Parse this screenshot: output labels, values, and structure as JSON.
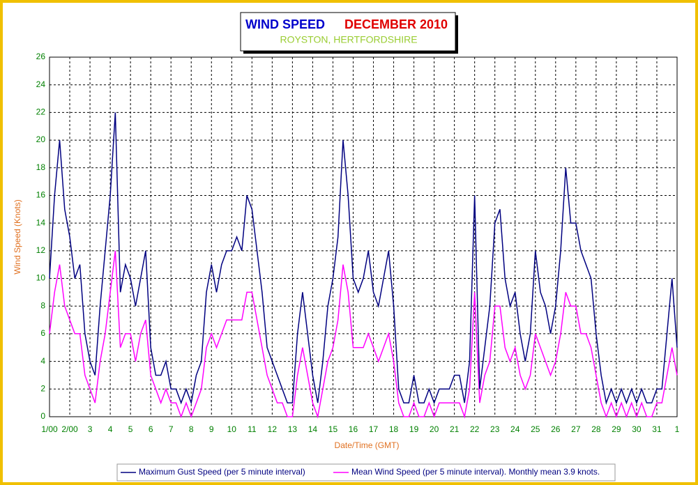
{
  "chart_data": {
    "type": "line",
    "title": "WIND SPEED",
    "title_date": "DECEMBER 2010",
    "subtitle": "ROYSTON, HERTFORDSHIRE",
    "xlabel": "Date/Time (GMT)",
    "ylabel": "Wind Speed (Knots)",
    "x": [
      0,
      0.25,
      0.5,
      0.75,
      1,
      1.25,
      1.5,
      1.75,
      2,
      2.25,
      2.5,
      2.75,
      3,
      3.25,
      3.5,
      3.75,
      4,
      4.25,
      4.5,
      4.75,
      5,
      5.25,
      5.5,
      5.75,
      6,
      6.25,
      6.5,
      6.75,
      7,
      7.25,
      7.5,
      7.75,
      8,
      8.25,
      8.5,
      8.75,
      9,
      9.25,
      9.5,
      9.75,
      10,
      10.25,
      10.5,
      10.75,
      11,
      11.25,
      11.5,
      11.75,
      12,
      12.25,
      12.5,
      12.75,
      13,
      13.25,
      13.5,
      13.75,
      14,
      14.25,
      14.5,
      14.75,
      15,
      15.25,
      15.5,
      15.75,
      16,
      16.25,
      16.5,
      16.75,
      17,
      17.25,
      17.5,
      17.75,
      18,
      18.25,
      18.5,
      18.75,
      19,
      19.25,
      19.5,
      19.75,
      20,
      20.25,
      20.5,
      20.75,
      21,
      21.25,
      21.5,
      21.75,
      22,
      22.25,
      22.5,
      22.75,
      23,
      23.25,
      23.5,
      23.75,
      24,
      24.25,
      24.5,
      24.75,
      25,
      25.25,
      25.5,
      25.75,
      26,
      26.25,
      26.5,
      26.75,
      27,
      27.25,
      27.5,
      27.75,
      28,
      28.25,
      28.5,
      28.75,
      29,
      29.25,
      29.5,
      29.75,
      30,
      30.25,
      30.5,
      30.75,
      31
    ],
    "series": [
      {
        "name": "Maximum Gust Speed (per 5 minute interval)",
        "color": "#000080",
        "values": [
          10,
          16,
          20,
          15,
          13,
          10,
          11,
          6,
          4,
          3,
          8,
          12,
          16,
          22,
          9,
          11,
          10,
          8,
          10,
          12,
          5,
          3,
          3,
          4,
          2,
          2,
          1,
          2,
          1,
          3,
          4,
          9,
          11,
          9,
          11,
          12,
          12,
          13,
          12,
          16,
          15,
          12,
          9,
          5,
          4,
          3,
          2,
          1,
          1,
          6,
          9,
          6,
          3,
          1,
          4,
          8,
          10,
          13,
          20,
          16,
          10,
          9,
          10,
          12,
          9,
          8,
          10,
          12,
          8,
          2,
          1,
          1,
          3,
          1,
          1,
          2,
          1,
          2,
          2,
          2,
          3,
          3,
          1,
          4,
          16,
          2,
          5,
          8,
          14,
          15,
          10,
          8,
          9,
          6,
          4,
          6,
          12,
          9,
          8,
          6,
          8,
          12,
          18,
          14,
          14,
          12,
          11,
          10,
          6,
          3,
          1,
          2,
          1,
          2,
          1,
          2,
          1,
          2,
          1,
          1,
          2,
          2,
          6,
          10,
          5
        ]
      },
      {
        "name": "Mean Wind Speed (per 5 minute interval). Monthly mean 3.9 knots.",
        "color": "#ff00ff",
        "values": [
          6,
          9,
          11,
          8,
          7,
          6,
          6,
          3,
          2,
          1,
          4,
          6,
          9,
          12,
          5,
          6,
          6,
          4,
          6,
          7,
          3,
          2,
          1,
          2,
          1,
          1,
          0,
          1,
          0,
          1,
          2,
          5,
          6,
          5,
          6,
          7,
          7,
          7,
          7,
          9,
          9,
          7,
          5,
          3,
          2,
          1,
          1,
          0,
          0,
          3,
          5,
          3,
          1,
          0,
          2,
          4,
          5,
          7,
          11,
          9,
          5,
          5,
          5,
          6,
          5,
          4,
          5,
          6,
          4,
          1,
          0,
          0,
          1,
          0,
          0,
          1,
          0,
          1,
          1,
          1,
          1,
          1,
          0,
          2,
          9,
          1,
          3,
          4,
          8,
          8,
          5,
          4,
          5,
          3,
          2,
          3,
          6,
          5,
          4,
          3,
          4,
          6,
          9,
          8,
          8,
          6,
          6,
          5,
          3,
          1,
          0,
          1,
          0,
          1,
          0,
          1,
          0,
          1,
          0,
          0,
          1,
          1,
          3,
          5,
          3
        ]
      }
    ],
    "xlim": [
      0,
      31
    ],
    "xticks": [
      {
        "value": 0,
        "label": "1/00"
      },
      {
        "value": 1,
        "label": "2/00"
      },
      {
        "value": 2,
        "label": "3"
      },
      {
        "value": 3,
        "label": "4"
      },
      {
        "value": 4,
        "label": "5"
      },
      {
        "value": 5,
        "label": "6"
      },
      {
        "value": 6,
        "label": "7"
      },
      {
        "value": 7,
        "label": "8"
      },
      {
        "value": 8,
        "label": "9"
      },
      {
        "value": 9,
        "label": "10"
      },
      {
        "value": 10,
        "label": "11"
      },
      {
        "value": 11,
        "label": "12"
      },
      {
        "value": 12,
        "label": "13"
      },
      {
        "value": 13,
        "label": "14"
      },
      {
        "value": 14,
        "label": "15"
      },
      {
        "value": 15,
        "label": "16"
      },
      {
        "value": 16,
        "label": "17"
      },
      {
        "value": 17,
        "label": "18"
      },
      {
        "value": 18,
        "label": "19"
      },
      {
        "value": 19,
        "label": "20"
      },
      {
        "value": 20,
        "label": "21"
      },
      {
        "value": 21,
        "label": "22"
      },
      {
        "value": 22,
        "label": "23"
      },
      {
        "value": 23,
        "label": "24"
      },
      {
        "value": 24,
        "label": "25"
      },
      {
        "value": 25,
        "label": "26"
      },
      {
        "value": 26,
        "label": "27"
      },
      {
        "value": 27,
        "label": "28"
      },
      {
        "value": 28,
        "label": "29"
      },
      {
        "value": 29,
        "label": "30"
      },
      {
        "value": 30,
        "label": "31"
      },
      {
        "value": 31,
        "label": "1"
      }
    ],
    "ylim": [
      0,
      26
    ],
    "yticks": [
      0,
      2,
      4,
      6,
      8,
      10,
      12,
      14,
      16,
      18,
      20,
      22,
      24,
      26
    ],
    "grid": true
  }
}
